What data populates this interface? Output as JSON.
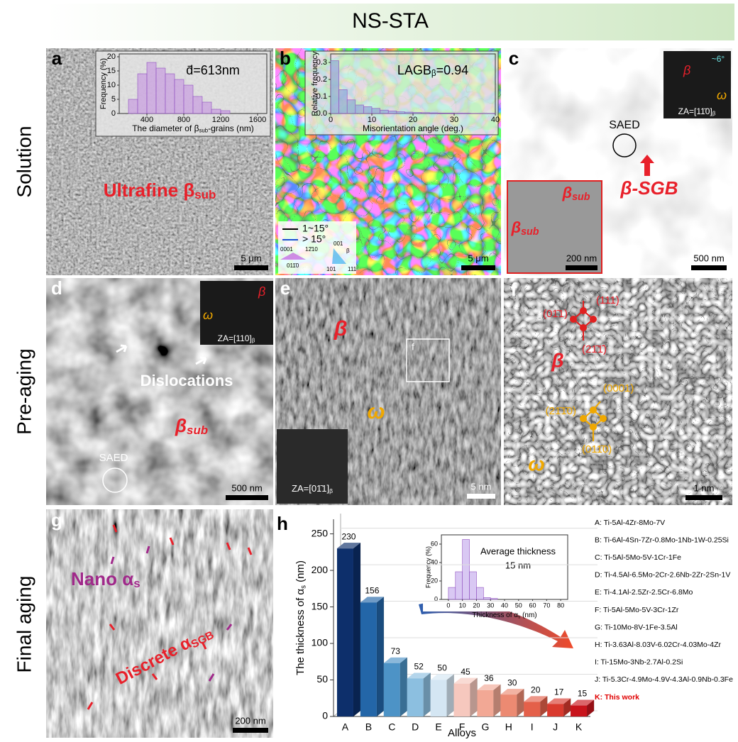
{
  "header": {
    "title": "NS-STA"
  },
  "rows": [
    "Solution",
    "Pre-aging",
    "Final aging"
  ],
  "panels": {
    "a": {
      "label": "a",
      "annotation": [
        {
          "text": "Ultrafine β"
        },
        {
          "sub": "sub"
        }
      ],
      "scale_bar": "5 μm"
    },
    "b": {
      "label": "b",
      "legend": [
        "1~15°",
        "> 15°"
      ],
      "legend_colors": [
        "#000000",
        "#2050d0"
      ],
      "ipf_hcp": [
        "0001",
        "12̄10",
        "011̄0"
      ],
      "ipf_bcc": [
        "001",
        "β",
        "101",
        "111"
      ],
      "scale_bar": "5 μm"
    },
    "c": {
      "label": "c",
      "saed": "SAED",
      "sgb": "β-SGB",
      "inset_sub": [
        [
          {
            "text": "β"
          },
          {
            "sub": "sub"
          }
        ],
        [
          {
            "text": "β"
          },
          {
            "sub": "sub"
          }
        ]
      ],
      "inset_scale_bar": "200 nm",
      "scale_bar": "500 nm",
      "pattern": {
        "angle": "~6°",
        "beta": "β",
        "omega": "ω",
        "zone_axis": [
          {
            "text": "ZA=[11̄0]"
          },
          {
            "sub": "β"
          }
        ]
      }
    },
    "d": {
      "label": "d",
      "dislocations": "Dislocations",
      "grain": [
        {
          "text": "β"
        },
        {
          "sub": "sub"
        }
      ],
      "saed": "SAED",
      "scale_bar": "500 nm",
      "pattern": {
        "beta": "β",
        "omega": "ω",
        "zone_axis": [
          {
            "text": "ZA=[110]"
          },
          {
            "sub": "β"
          }
        ]
      }
    },
    "e": {
      "label": "e",
      "beta": "β",
      "omega": "ω",
      "box": "f",
      "zone_axis": [
        {
          "text": "ZA=[01̄1]"
        },
        {
          "sub": "β"
        }
      ],
      "scale_bar": "5 nm"
    },
    "f": {
      "label": "f",
      "beta_planes": [
        "(111)",
        "(01̄1)",
        "(21̄1̄)"
      ],
      "beta": "β",
      "omega_planes": [
        "(0001)",
        "(21̄1̄0)",
        "(011̄0)"
      ],
      "omega": "ω",
      "scale_bar": "1 nm"
    },
    "g": {
      "label": "g",
      "nano": [
        {
          "text": "Nano α"
        },
        {
          "sub": "s"
        }
      ],
      "discrete": [
        {
          "text": "Discrete α"
        },
        {
          "sub": "SGB"
        }
      ],
      "scale_bar": "200 nm"
    },
    "h": {
      "label": "h",
      "alloys": [
        "A: Ti-5Al-4Zr-8Mo-7V",
        "B: Ti-6Al-4Sn-7Zr-0.8Mo-1Nb-1W-0.25Si",
        "C: Ti-5Al-5Mo-5V-1Cr-1Fe",
        "D: Ti-4.5Al-6.5Mo-2Cr-2.6Nb-2Zr-2Sn-1V",
        "E: Ti-4.1Al-2.5Zr-2.5Cr-6.8Mo",
        "F: Ti-5Al-5Mo-5V-3Cr-1Zr",
        "G: Ti-10Mo-8V-1Fe-3.5Al",
        "H: Ti-3.63Al-8.03V-6.02Cr-4.03Mo-4Zr",
        "I: Ti-15Mo-3Nb-2.7Al-0.2Si",
        "J: Ti-5.3Cr-4.9Mo-4.9V-4.3Al-0.9Nb-0.3Fe",
        "K: This work"
      ]
    }
  },
  "chart_data": [
    {
      "type": "histogram",
      "annotation": "d̄=613nm",
      "ylabel": "Frequency (%)",
      "xlabel": [
        {
          "text": "The diameter of β"
        },
        {
          "sub": "sub"
        },
        {
          "text": "-grains (nm)"
        }
      ],
      "bins": [
        200,
        300,
        400,
        500,
        600,
        700,
        800,
        900,
        1000,
        1100,
        1200,
        1300
      ],
      "values": [
        5,
        14,
        18,
        16,
        14,
        12,
        10,
        6,
        4,
        1.5,
        1
      ],
      "color": "#c89be0",
      "xlim": [
        100,
        1700
      ],
      "xticks": [
        400,
        800,
        1200,
        1600
      ],
      "ylim": [
        0,
        21
      ],
      "yticks": [
        0,
        5,
        10,
        15,
        20
      ]
    },
    {
      "type": "histogram",
      "annotation": [
        {
          "text": "LAGB"
        },
        {
          "sub": "β"
        },
        {
          "text": "=0.94"
        }
      ],
      "ylabel": "Relative frequency",
      "xlabel": "Misorientation angle (deg.)",
      "bins": [
        0,
        2,
        4,
        6,
        8,
        10,
        12,
        14,
        16,
        18,
        20,
        22,
        24,
        26,
        28,
        30,
        32,
        34,
        36,
        38,
        40
      ],
      "values": [
        0.31,
        0.14,
        0.08,
        0.05,
        0.04,
        0.03,
        0.02,
        0.015,
        0.01,
        0.008,
        0.006,
        0.005,
        0.004,
        0.003,
        0.003,
        0.002,
        0.002,
        0.001,
        0.001,
        0.001
      ],
      "color": "#8fa8d8",
      "xlim": [
        0,
        40
      ],
      "xticks": [
        0,
        10,
        20,
        30,
        40
      ],
      "ylim": [
        0,
        0.35
      ],
      "yticks": [
        {
          "value": 0,
          "label": "0.0"
        },
        0.1,
        0.2,
        0.3
      ]
    },
    {
      "type": "bar",
      "ylabel": [
        {
          "text": "The thickness of α"
        },
        {
          "sub": "s"
        },
        {
          "text": " (nm)"
        }
      ],
      "xlabel": "Alloys",
      "categories": [
        "A",
        "B",
        "C",
        "D",
        "E",
        "F",
        "G",
        "H",
        "I",
        "J",
        "K"
      ],
      "values": [
        230,
        156,
        73,
        52,
        50,
        45,
        36,
        30,
        20,
        17,
        15
      ],
      "colors": [
        "#0d2f6b",
        "#2366a8",
        "#4d93c6",
        "#8cbfe0",
        "#d4e6f3",
        "#f6c8be",
        "#f2a895",
        "#ec8a72",
        "#e4604a",
        "#d93a2e",
        "#c8141c"
      ],
      "ylim": [
        0,
        270
      ],
      "yticks": [
        0,
        50,
        100,
        150,
        200,
        250
      ]
    },
    {
      "type": "histogram",
      "annotation": [
        "Average thickness",
        "15 nm"
      ],
      "ylabel": "Frequency (%)",
      "xlabel": [
        {
          "text": "Thickness of α"
        },
        {
          "sub": "s"
        },
        {
          "text": " (nm)"
        }
      ],
      "bins": [
        0,
        5,
        10,
        15,
        20,
        25,
        30,
        35
      ],
      "values": [
        13,
        30,
        65,
        30,
        13,
        2,
        1
      ],
      "color": "#c9b0ee",
      "xlim": [
        -5,
        85
      ],
      "xticks": [
        0,
        10,
        20,
        30,
        40,
        50,
        60,
        70,
        80
      ],
      "ylim": [
        0,
        70
      ],
      "yticks": [
        0,
        20,
        40,
        60
      ]
    }
  ]
}
